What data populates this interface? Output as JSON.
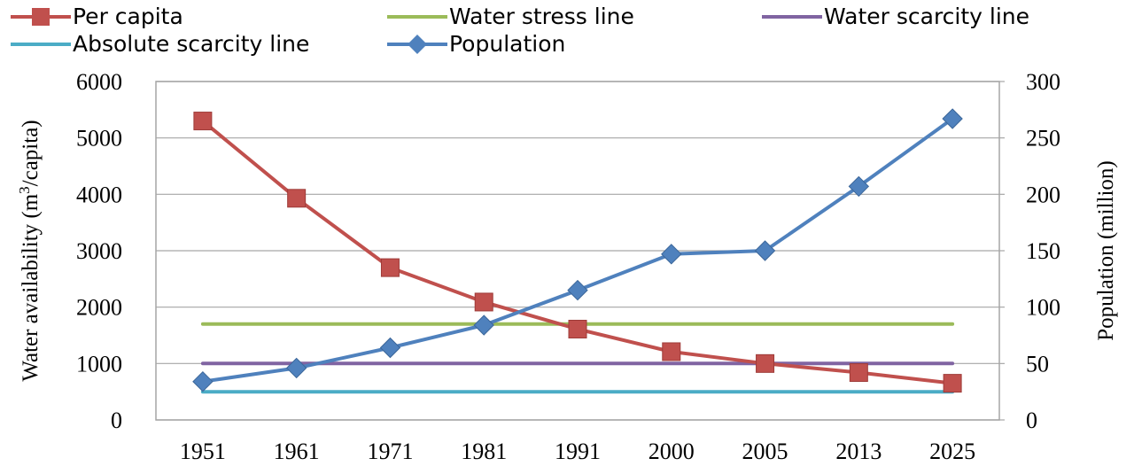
{
  "chart_data": {
    "type": "line",
    "x": [
      "1951",
      "1961",
      "1971",
      "1981",
      "1991",
      "2000",
      "2005",
      "2013",
      "2025"
    ],
    "xlabel": "",
    "ylabel": "Water availability (m³/capita)",
    "ylabel_parts": {
      "pre": "Water availability (m",
      "sup": "3",
      "post": "/capita)"
    },
    "y2label": "Population (million)",
    "ylim": [
      0,
      6000
    ],
    "y2lim": [
      0,
      300
    ],
    "yticks": [
      "0",
      "1000",
      "2000",
      "3000",
      "4000",
      "5000",
      "6000"
    ],
    "y2ticks": [
      "0",
      "50",
      "100",
      "150",
      "200",
      "250",
      "300"
    ],
    "grid": true,
    "legend_position": "top",
    "series": [
      {
        "name": "Per capita",
        "axis": "left",
        "color": "#C0504D",
        "marker": "square",
        "values": [
          5300,
          3930,
          2700,
          2090,
          1610,
          1210,
          1000,
          840,
          650
        ]
      },
      {
        "name": "Water stress line",
        "axis": "left",
        "color": "#9BBB59",
        "marker": "none",
        "values": [
          1700,
          1700,
          1700,
          1700,
          1700,
          1700,
          1700,
          1700,
          1700
        ]
      },
      {
        "name": "Water scarcity line",
        "axis": "left",
        "color": "#8064A2",
        "marker": "none",
        "values": [
          1000,
          1000,
          1000,
          1000,
          1000,
          1000,
          1000,
          1000,
          1000
        ]
      },
      {
        "name": "Absolute scarcity line",
        "axis": "left",
        "color": "#4BACC6",
        "marker": "none",
        "values": [
          500,
          500,
          500,
          500,
          500,
          500,
          500,
          500,
          500
        ]
      },
      {
        "name": "Population",
        "axis": "right",
        "color": "#4F81BD",
        "marker": "diamond",
        "values": [
          34,
          46,
          64,
          84,
          115,
          147,
          150,
          207,
          267
        ]
      }
    ],
    "legend_order": [
      0,
      1,
      2,
      3,
      4
    ]
  }
}
